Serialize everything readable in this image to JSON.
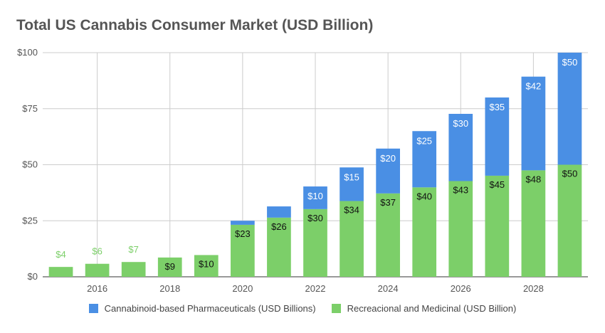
{
  "chart_data": {
    "type": "bar",
    "stacked": true,
    "title": "Total US Cannabis Consumer Market (USD Billion)",
    "xlabel": "",
    "ylabel": "",
    "ylim": [
      0,
      100
    ],
    "y_ticks": [
      0,
      25,
      50,
      75,
      100
    ],
    "y_tick_labels": [
      "$0",
      "$25",
      "$50",
      "$75",
      "$100"
    ],
    "x": [
      2015,
      2016,
      2017,
      2018,
      2019,
      2020,
      2021,
      2022,
      2023,
      2024,
      2025,
      2026,
      2027,
      2028,
      2029
    ],
    "x_tick_labels": [
      {
        "x": 2016,
        "label": "2016"
      },
      {
        "x": 2018,
        "label": "2018"
      },
      {
        "x": 2020,
        "label": "2020"
      },
      {
        "x": 2022,
        "label": "2022"
      },
      {
        "x": 2024,
        "label": "2024"
      },
      {
        "x": 2026,
        "label": "2026"
      },
      {
        "x": 2028,
        "label": "2028"
      }
    ],
    "grid": true,
    "legend": "bottom",
    "series": [
      {
        "name": "Recreacional and Medicinal (USD Billion)",
        "color": "#7ccf69",
        "values": [
          4.4,
          5.8,
          6.6,
          8.6,
          9.7,
          23.2,
          26.4,
          30.2,
          33.8,
          37.2,
          39.9,
          42.7,
          45.1,
          47.5,
          50.0
        ],
        "labels": [
          "$4",
          "$6",
          "$7",
          "$9",
          "$10",
          "$23",
          "$26",
          "$30",
          "$34",
          "$37",
          "$40",
          "$43",
          "$45",
          "$48",
          "$50"
        ]
      },
      {
        "name": "Cannabinoid-based Pharmaceuticals (USD Billions)",
        "color": "#4a8fe4",
        "values": [
          0,
          0,
          0,
          0,
          0,
          1.8,
          5.0,
          10.1,
          15.0,
          20.0,
          25.1,
          30.0,
          34.9,
          41.8,
          50.0
        ],
        "labels": [
          "",
          "",
          "",
          "",
          "",
          "",
          "",
          "$10",
          "$15",
          "$20",
          "$25",
          "$30",
          "$35",
          "$42",
          "$50"
        ]
      }
    ],
    "legend_order": [
      1,
      0
    ]
  }
}
